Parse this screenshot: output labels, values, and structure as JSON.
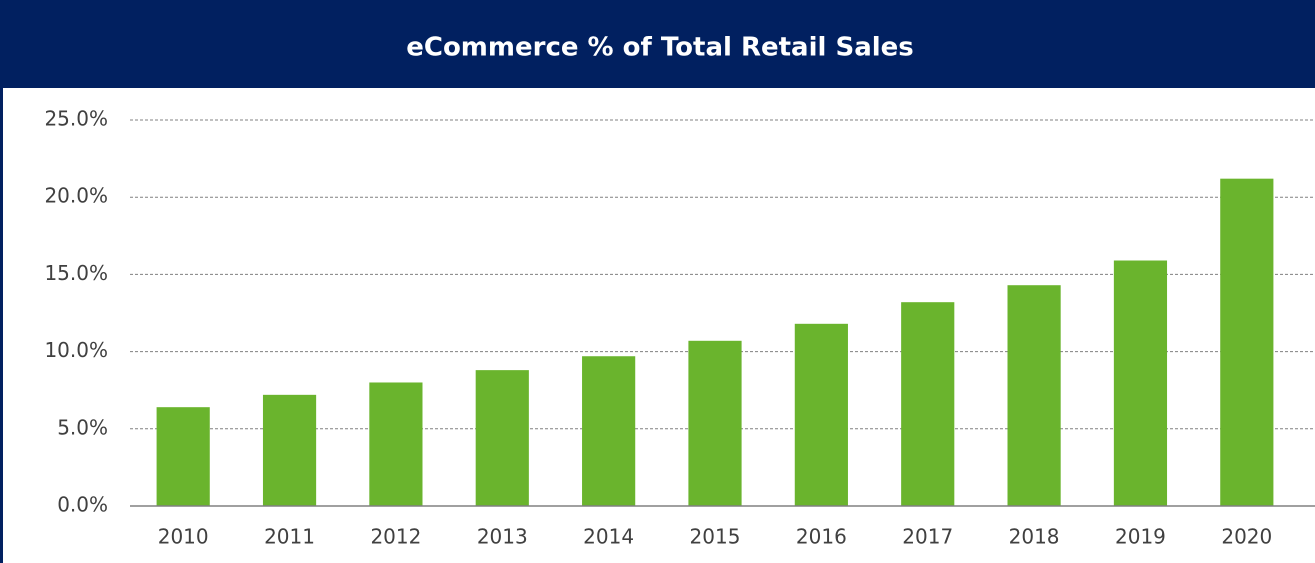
{
  "chart_data": {
    "type": "bar",
    "title": "eCommerce % of Total Retail Sales",
    "categories": [
      "2010",
      "2011",
      "2012",
      "2013",
      "2014",
      "2015",
      "2016",
      "2017",
      "2018",
      "2019",
      "2020"
    ],
    "values": [
      6.4,
      7.2,
      8.0,
      8.8,
      9.7,
      10.7,
      11.8,
      13.2,
      14.3,
      15.9,
      21.2
    ],
    "color": "#6ab42d",
    "ylim": [
      0,
      25
    ],
    "yticks": [
      {
        "value": 0,
        "label": "0.0%"
      },
      {
        "value": 5,
        "label": "5.0%"
      },
      {
        "value": 10,
        "label": "10.0%"
      },
      {
        "value": 15,
        "label": "15.0%"
      },
      {
        "value": 20,
        "label": "20.0%"
      },
      {
        "value": 25,
        "label": "25.0%"
      }
    ],
    "grid": true
  }
}
